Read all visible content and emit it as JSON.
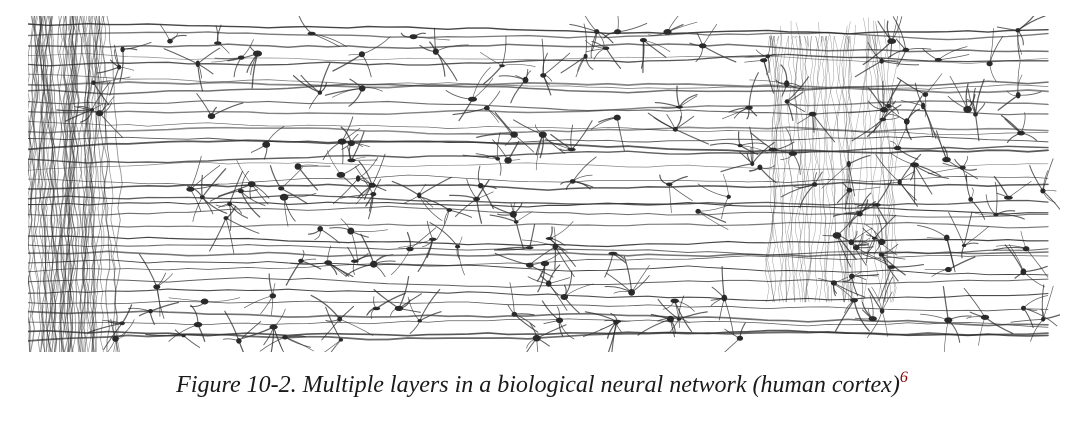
{
  "figure": {
    "image_label": "biological-neural-network-illustration",
    "caption_prefix": "Figure 10-2.",
    "caption_text": " Multiple layers in a biological neural network (human cortex)",
    "footnote_ref": "6"
  },
  "colors": {
    "ink": "#2b2b2b",
    "footnote": "#8b0000",
    "background": "#ffffff"
  }
}
